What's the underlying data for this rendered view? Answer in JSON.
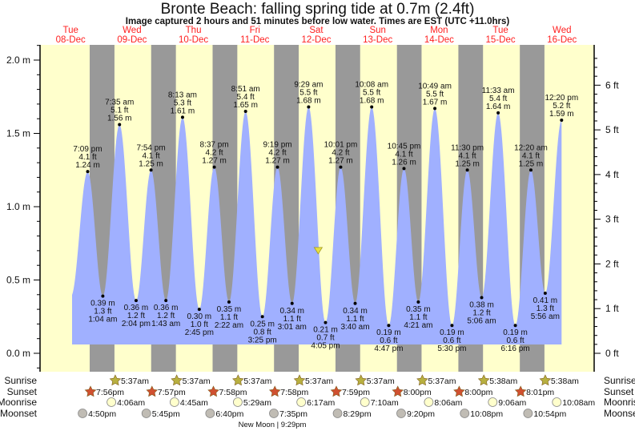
{
  "title": "Bronte Beach: falling  spring tide at 0.7m (2.4ft)",
  "subtitle": "Image captured 2 hours and 51 minutes before low water. Times are EST (UTC +11.0hrs)",
  "colors": {
    "day": "#ffffcc",
    "night": "#999999",
    "water": "#a0b0ff",
    "day_label": "#ff2020",
    "sunrise": "#b8b040",
    "sunset": "#d05030",
    "moonrise": "#ffffcc",
    "moonset": "#c0bcb4",
    "marker": "#e8e040"
  },
  "chart_data": {
    "type": "area",
    "title": "Bronte Beach: falling  spring tide at 0.7m (2.4ft)",
    "days": [
      {
        "dow": "Tue",
        "date": "08-Dec"
      },
      {
        "dow": "Wed",
        "date": "09-Dec"
      },
      {
        "dow": "Thu",
        "date": "10-Dec"
      },
      {
        "dow": "Fri",
        "date": "11-Dec"
      },
      {
        "dow": "Sat",
        "date": "12-Dec"
      },
      {
        "dow": "Sun",
        "date": "13-Dec"
      },
      {
        "dow": "Mon",
        "date": "14-Dec"
      },
      {
        "dow": "Tue",
        "date": "15-Dec"
      },
      {
        "dow": "Wed",
        "date": "16-Dec"
      }
    ],
    "y_left": {
      "unit": "m",
      "range": [
        -0.1,
        2.1
      ],
      "ticks": [
        "0.0 m",
        "0.5 m",
        "1.0 m",
        "1.5 m",
        "2.0 m"
      ],
      "tick_values": [
        0,
        0.5,
        1.0,
        1.5,
        2.0
      ]
    },
    "y_right": {
      "unit": "ft",
      "ticks": [
        "0 ft",
        "1 ft",
        "2 ft",
        "3 ft",
        "4 ft",
        "5 ft",
        "6 ft"
      ],
      "tick_values": [
        0,
        1,
        2,
        3,
        4,
        5,
        6
      ]
    },
    "current": {
      "level_m": 0.7,
      "level_ft": 2.4,
      "day": 4,
      "time": "1:14 pm",
      "state": "falling"
    },
    "tides": [
      {
        "day": 0,
        "time": "7:09 pm",
        "m": "1.24 m",
        "ft": "4.1 ft",
        "value": 1.24,
        "type": "high"
      },
      {
        "day": 1,
        "time": "1:04 am",
        "m": "0.39 m",
        "ft": "1.3 ft",
        "value": 0.39,
        "type": "low"
      },
      {
        "day": 1,
        "time": "7:35 am",
        "m": "1.56 m",
        "ft": "5.1 ft",
        "value": 1.56,
        "type": "high"
      },
      {
        "day": 1,
        "time": "2:04 pm",
        "m": "0.36 m",
        "ft": "1.2 ft",
        "value": 0.36,
        "type": "low"
      },
      {
        "day": 1,
        "time": "7:54 pm",
        "m": "1.25 m",
        "ft": "4.1 ft",
        "value": 1.25,
        "type": "high"
      },
      {
        "day": 2,
        "time": "1:43 am",
        "m": "0.36 m",
        "ft": "1.2 ft",
        "value": 0.36,
        "type": "low"
      },
      {
        "day": 2,
        "time": "8:13 am",
        "m": "1.61 m",
        "ft": "5.3 ft",
        "value": 1.61,
        "type": "high"
      },
      {
        "day": 2,
        "time": "2:45 pm",
        "m": "0.30 m",
        "ft": "1.0 ft",
        "value": 0.3,
        "type": "low"
      },
      {
        "day": 2,
        "time": "8:37 pm",
        "m": "1.27 m",
        "ft": "4.2 ft",
        "value": 1.27,
        "type": "high"
      },
      {
        "day": 3,
        "time": "2:22 am",
        "m": "0.35 m",
        "ft": "1.1 ft",
        "value": 0.35,
        "type": "low"
      },
      {
        "day": 3,
        "time": "8:51 am",
        "m": "1.65 m",
        "ft": "5.4 ft",
        "value": 1.65,
        "type": "high"
      },
      {
        "day": 3,
        "time": "3:25 pm",
        "m": "0.25 m",
        "ft": "0.8 ft",
        "value": 0.25,
        "type": "low"
      },
      {
        "day": 3,
        "time": "9:19 pm",
        "m": "1.27 m",
        "ft": "4.2 ft",
        "value": 1.27,
        "type": "high"
      },
      {
        "day": 4,
        "time": "3:01 am",
        "m": "0.34 m",
        "ft": "1.1 ft",
        "value": 0.34,
        "type": "low"
      },
      {
        "day": 4,
        "time": "9:29 am",
        "m": "1.68 m",
        "ft": "5.5 ft",
        "value": 1.68,
        "type": "high"
      },
      {
        "day": 4,
        "time": "4:05 pm",
        "m": "0.21 m",
        "ft": "0.7 ft",
        "value": 0.21,
        "type": "low"
      },
      {
        "day": 4,
        "time": "10:01 pm",
        "m": "1.27 m",
        "ft": "4.2 ft",
        "value": 1.27,
        "type": "high"
      },
      {
        "day": 5,
        "time": "3:40 am",
        "m": "0.34 m",
        "ft": "1.1 ft",
        "value": 0.34,
        "type": "low"
      },
      {
        "day": 5,
        "time": "10:08 am",
        "m": "1.68 m",
        "ft": "5.5 ft",
        "value": 1.68,
        "type": "high"
      },
      {
        "day": 5,
        "time": "4:47 pm",
        "m": "0.19 m",
        "ft": "0.6 ft",
        "value": 0.19,
        "type": "low"
      },
      {
        "day": 5,
        "time": "10:45 pm",
        "m": "1.26 m",
        "ft": "4.1 ft",
        "value": 1.26,
        "type": "high"
      },
      {
        "day": 6,
        "time": "4:21 am",
        "m": "0.35 m",
        "ft": "1.1 ft",
        "value": 0.35,
        "type": "low"
      },
      {
        "day": 6,
        "time": "10:49 am",
        "m": "1.67 m",
        "ft": "5.5 ft",
        "value": 1.67,
        "type": "high"
      },
      {
        "day": 6,
        "time": "5:30 pm",
        "m": "0.19 m",
        "ft": "0.6 ft",
        "value": 0.19,
        "type": "low"
      },
      {
        "day": 6,
        "time": "11:30 pm",
        "m": "1.25 m",
        "ft": "4.1 ft",
        "value": 1.25,
        "type": "high"
      },
      {
        "day": 7,
        "time": "5:06 am",
        "m": "0.38 m",
        "ft": "1.2 ft",
        "value": 0.38,
        "type": "low"
      },
      {
        "day": 7,
        "time": "11:33 am",
        "m": "1.64 m",
        "ft": "5.4 ft",
        "value": 1.64,
        "type": "high"
      },
      {
        "day": 7,
        "time": "6:16 pm",
        "m": "0.19 m",
        "ft": "0.6 ft",
        "value": 0.19,
        "type": "low"
      },
      {
        "day": 8,
        "time": "12:20 am",
        "m": "1.25 m",
        "ft": "4.1 ft",
        "value": 1.25,
        "type": "high"
      },
      {
        "day": 8,
        "time": "5:56 am",
        "m": "0.41 m",
        "ft": "1.3 ft",
        "value": 0.41,
        "type": "low"
      },
      {
        "day": 8,
        "time": "12:20 pm",
        "m": "1.59 m",
        "ft": "5.2 ft",
        "value": 1.59,
        "type": "high"
      }
    ],
    "rows": {
      "sunrise": {
        "label": "Sunrise",
        "events": [
          {
            "day": 1,
            "time": "5:37am"
          },
          {
            "day": 2,
            "time": "5:37am"
          },
          {
            "day": 3,
            "time": "5:37am"
          },
          {
            "day": 4,
            "time": "5:37am"
          },
          {
            "day": 5,
            "time": "5:37am"
          },
          {
            "day": 6,
            "time": "5:37am"
          },
          {
            "day": 7,
            "time": "5:38am"
          },
          {
            "day": 8,
            "time": "5:38am"
          }
        ]
      },
      "sunset": {
        "label": "Sunset",
        "events": [
          {
            "day": 0,
            "time": "7:56pm"
          },
          {
            "day": 1,
            "time": "7:57pm"
          },
          {
            "day": 2,
            "time": "7:58pm"
          },
          {
            "day": 3,
            "time": "7:58pm"
          },
          {
            "day": 4,
            "time": "7:59pm"
          },
          {
            "day": 5,
            "time": "8:00pm"
          },
          {
            "day": 6,
            "time": "8:00pm"
          },
          {
            "day": 7,
            "time": "8:01pm"
          }
        ]
      },
      "moonrise": {
        "label": "Moonrise",
        "events": [
          {
            "day": 1,
            "time": "4:06am"
          },
          {
            "day": 2,
            "time": "4:45am"
          },
          {
            "day": 3,
            "time": "5:29am"
          },
          {
            "day": 4,
            "time": "6:17am"
          },
          {
            "day": 5,
            "time": "7:10am"
          },
          {
            "day": 6,
            "time": "8:06am"
          },
          {
            "day": 7,
            "time": "9:06am"
          },
          {
            "day": 8,
            "time": "10:08am"
          }
        ]
      },
      "moonset": {
        "label": "Moonset",
        "events": [
          {
            "day": 0,
            "time": "4:50pm"
          },
          {
            "day": 1,
            "time": "5:45pm"
          },
          {
            "day": 2,
            "time": "6:40pm"
          },
          {
            "day": 3,
            "time": "7:35pm"
          },
          {
            "day": 4,
            "time": "8:29pm"
          },
          {
            "day": 5,
            "time": "9:20pm"
          },
          {
            "day": 6,
            "time": "10:08pm"
          },
          {
            "day": 7,
            "time": "10:54pm"
          }
        ]
      }
    },
    "moon_phase": "New Moon | 9:29pm"
  }
}
